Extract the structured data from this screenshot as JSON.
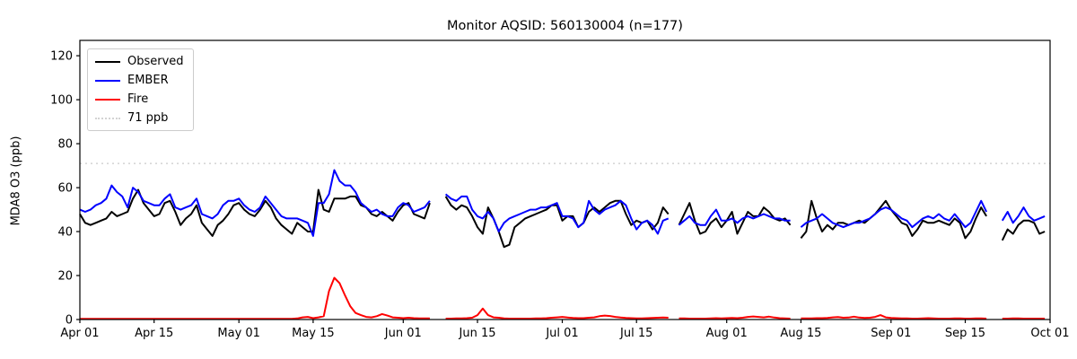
{
  "chart_data": {
    "type": "line",
    "title": "Monitor AQSID: 560130004 (n=177)",
    "ylabel": "MDA8 O3 (ppb)",
    "xlabel": "",
    "n_observations": 177,
    "ylim": [
      0,
      127
    ],
    "yticks": [
      0,
      20,
      40,
      60,
      80,
      100,
      120
    ],
    "x_total_days": 183,
    "x_tick_labels": [
      "Apr 01",
      "Apr 15",
      "May 01",
      "May 15",
      "Jun 01",
      "Jun 15",
      "Jul 01",
      "Jul 15",
      "Aug 01",
      "Aug 15",
      "Sep 01",
      "Sep 15",
      "Oct 01"
    ],
    "x_tick_days": [
      0,
      14,
      30,
      44,
      61,
      75,
      91,
      105,
      122,
      136,
      153,
      167,
      183
    ],
    "grid": false,
    "frame_color": "#000000",
    "threshold": {
      "value": 71,
      "label": "71 ppb",
      "color": "#d3d3d3",
      "style": "dotted"
    },
    "legend": {
      "position": "upper-left",
      "entries": [
        {
          "label": "Observed",
          "color": "#000000",
          "dashed": false
        },
        {
          "label": "EMBER",
          "color": "#0000ff",
          "dashed": false
        },
        {
          "label": "Fire",
          "color": "#ff0000",
          "dashed": false
        },
        {
          "label": "71 ppb",
          "color": "#d3d3d3",
          "dashed": true
        }
      ]
    },
    "series": [
      {
        "name": "Observed",
        "color": "#000000",
        "values": [
          48,
          44,
          43,
          44,
          45,
          46,
          49,
          47,
          48,
          49,
          55,
          59,
          53,
          50,
          47,
          48,
          53,
          54,
          49,
          43,
          46,
          48,
          52,
          44,
          41,
          38,
          43,
          45,
          48,
          52,
          53,
          50,
          48,
          47,
          50,
          54,
          51,
          46,
          43,
          41,
          39,
          44,
          42,
          40,
          40,
          59,
          50,
          49,
          55,
          55,
          55,
          56,
          56,
          52,
          51,
          48,
          47,
          49,
          47,
          45,
          49,
          52,
          53,
          48,
          47,
          46,
          53,
          null,
          null,
          56,
          52,
          50,
          52,
          51,
          47,
          42,
          39,
          51,
          46,
          40,
          33,
          34,
          42,
          44,
          46,
          47,
          48,
          49,
          50,
          52,
          52,
          45,
          47,
          47,
          42,
          44,
          49,
          51,
          49,
          51,
          53,
          54,
          54,
          48,
          43,
          45,
          44,
          45,
          41,
          44,
          51,
          48,
          null,
          43,
          48,
          53,
          45,
          39,
          40,
          44,
          46,
          42,
          45,
          49,
          39,
          44,
          49,
          47,
          47,
          51,
          49,
          46,
          45,
          46,
          43,
          null,
          37,
          40,
          54,
          46,
          40,
          43,
          41,
          44,
          44,
          43,
          44,
          45,
          44,
          46,
          48,
          51,
          54,
          50,
          47,
          44,
          43,
          38,
          41,
          45,
          44,
          44,
          45,
          44,
          43,
          46,
          44,
          37,
          40,
          46,
          51,
          47,
          null,
          null,
          36,
          41,
          39,
          43,
          45,
          45,
          44,
          39,
          40
        ]
      },
      {
        "name": "EMBER",
        "color": "#0000ff",
        "values": [
          50,
          49,
          50,
          52,
          53,
          55,
          61,
          58,
          56,
          51,
          60,
          58,
          54,
          53,
          52,
          52,
          55,
          57,
          51,
          50,
          51,
          52,
          55,
          48,
          47,
          46,
          48,
          52,
          54,
          54,
          55,
          52,
          50,
          49,
          51,
          56,
          53,
          50,
          47,
          46,
          46,
          46,
          45,
          44,
          38,
          53,
          53,
          57,
          68,
          63,
          61,
          61,
          58,
          53,
          51,
          49,
          50,
          48,
          47,
          47,
          51,
          53,
          52,
          49,
          50,
          51,
          54,
          null,
          null,
          57,
          55,
          54,
          56,
          56,
          50,
          47,
          46,
          49,
          46,
          40,
          44,
          46,
          47,
          48,
          49,
          50,
          50,
          51,
          51,
          52,
          53,
          47,
          47,
          46,
          42,
          44,
          54,
          50,
          48,
          50,
          51,
          52,
          54,
          52,
          46,
          41,
          44,
          45,
          43,
          39,
          45,
          46,
          null,
          43,
          45,
          47,
          44,
          43,
          43,
          47,
          50,
          45,
          45,
          46,
          44,
          46,
          47,
          46,
          47,
          48,
          47,
          46,
          46,
          45,
          45,
          null,
          42,
          44,
          45,
          46,
          48,
          46,
          44,
          43,
          42,
          43,
          44,
          44,
          45,
          46,
          48,
          50,
          51,
          50,
          48,
          46,
          45,
          42,
          44,
          46,
          47,
          46,
          48,
          46,
          45,
          48,
          45,
          42,
          44,
          49,
          54,
          49,
          null,
          null,
          45,
          49,
          44,
          47,
          51,
          47,
          45,
          46,
          47
        ]
      },
      {
        "name": "Fire",
        "color": "#ff0000",
        "values": [
          0.3,
          0.3,
          0.3,
          0.3,
          0.3,
          0.3,
          0.3,
          0.3,
          0.3,
          0.3,
          0.3,
          0.3,
          0.3,
          0.3,
          0.3,
          0.3,
          0.3,
          0.3,
          0.3,
          0.3,
          0.3,
          0.3,
          0.3,
          0.3,
          0.3,
          0.3,
          0.3,
          0.3,
          0.3,
          0.3,
          0.3,
          0.3,
          0.3,
          0.3,
          0.3,
          0.3,
          0.3,
          0.3,
          0.3,
          0.3,
          0.3,
          0.5,
          1.0,
          1.2,
          0.6,
          1.0,
          1.5,
          13,
          19,
          16.5,
          11,
          6,
          3,
          2,
          1.2,
          1.0,
          1.5,
          2.5,
          1.8,
          1.0,
          0.8,
          0.6,
          0.8,
          0.6,
          0.5,
          0.5,
          0.5,
          null,
          null,
          0.4,
          0.4,
          0.5,
          0.5,
          0.6,
          0.8,
          2.0,
          5.0,
          2.0,
          1.0,
          0.8,
          0.5,
          0.4,
          0.4,
          0.4,
          0.4,
          0.4,
          0.5,
          0.5,
          0.6,
          0.8,
          1.0,
          1.2,
          0.9,
          0.7,
          0.6,
          0.6,
          0.8,
          1.0,
          1.5,
          1.8,
          1.6,
          1.2,
          0.9,
          0.7,
          0.6,
          0.5,
          0.5,
          0.6,
          0.7,
          0.8,
          0.9,
          0.8,
          null,
          0.5,
          0.5,
          0.4,
          0.4,
          0.4,
          0.4,
          0.5,
          0.6,
          0.5,
          0.6,
          0.7,
          0.6,
          0.8,
          1.2,
          1.4,
          1.2,
          1.0,
          1.3,
          0.9,
          0.6,
          0.5,
          0.4,
          null,
          0.5,
          0.5,
          0.5,
          0.6,
          0.6,
          0.7,
          1.0,
          1.1,
          0.8,
          0.9,
          1.3,
          0.9,
          0.7,
          0.8,
          1.2,
          2.0,
          1.0,
          0.7,
          0.6,
          0.5,
          0.5,
          0.4,
          0.4,
          0.5,
          0.6,
          0.5,
          0.4,
          0.4,
          0.4,
          0.5,
          0.5,
          0.4,
          0.4,
          0.5,
          0.5,
          0.4,
          null,
          null,
          0.4,
          0.4,
          0.5,
          0.5,
          0.4,
          0.4,
          0.4,
          0.4,
          0.4
        ]
      }
    ]
  }
}
